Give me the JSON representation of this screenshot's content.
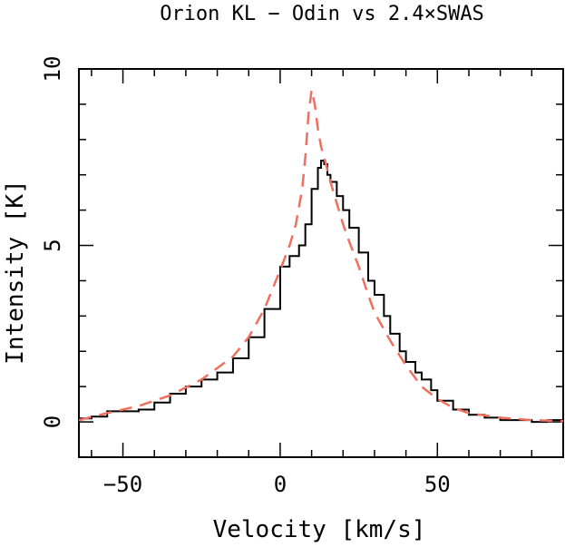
{
  "chart_data": {
    "type": "line",
    "title": "Orion KL − Odin vs 2.4×SWAS",
    "xlabel": "Velocity  [km/s]",
    "ylabel": "Intensity [K]",
    "xlim": [
      -64,
      90
    ],
    "ylim": [
      -1,
      10
    ],
    "xticks": [
      -50,
      0,
      50
    ],
    "yticks": [
      0,
      5,
      10
    ],
    "x_tick_labels": [
      "−50",
      "0",
      "50"
    ],
    "y_tick_labels": [
      "0",
      "5",
      "10"
    ],
    "grid": false,
    "series": [
      {
        "style": "histogram-step",
        "color": "#000000",
        "x": [
          -64,
          -60,
          -55,
          -50,
          -45,
          -40,
          -35,
          -30,
          -25,
          -20,
          -15,
          -10,
          -5,
          0,
          3,
          6,
          8,
          10,
          12,
          13,
          14,
          15,
          16,
          18,
          20,
          22,
          25,
          28,
          30,
          33,
          35,
          38,
          40,
          43,
          45,
          48,
          50,
          55,
          60,
          65,
          70,
          75,
          80,
          85,
          90
        ],
        "y": [
          0.1,
          0.15,
          0.3,
          0.3,
          0.35,
          0.55,
          0.8,
          1.0,
          1.2,
          1.4,
          1.8,
          2.4,
          3.2,
          4.4,
          4.7,
          5.0,
          5.6,
          6.6,
          7.2,
          7.4,
          7.3,
          7.0,
          6.8,
          6.4,
          6.0,
          5.5,
          4.8,
          4.0,
          3.6,
          3.0,
          2.5,
          2.0,
          1.7,
          1.4,
          1.2,
          0.9,
          0.6,
          0.35,
          0.2,
          0.12,
          0.05,
          0.05,
          0.0,
          0.05,
          0.05
        ]
      },
      {
        "style": "dashed",
        "color": "#f07060",
        "x": [
          -64,
          -55,
          -45,
          -35,
          -25,
          -15,
          -10,
          -5,
          0,
          3,
          5,
          7,
          8,
          9,
          10,
          11,
          12,
          13,
          14,
          16,
          18,
          20,
          22,
          25,
          28,
          30,
          35,
          40,
          45,
          50,
          55,
          60,
          70,
          80,
          90
        ],
        "y": [
          0.05,
          0.25,
          0.45,
          0.75,
          1.2,
          1.85,
          2.4,
          3.2,
          4.3,
          5.0,
          5.6,
          6.6,
          7.5,
          8.7,
          9.4,
          9.0,
          8.3,
          7.8,
          7.5,
          6.8,
          6.2,
          5.6,
          5.1,
          4.4,
          3.6,
          3.1,
          2.3,
          1.6,
          1.0,
          0.65,
          0.4,
          0.25,
          0.12,
          0.05,
          0.02
        ]
      }
    ]
  }
}
